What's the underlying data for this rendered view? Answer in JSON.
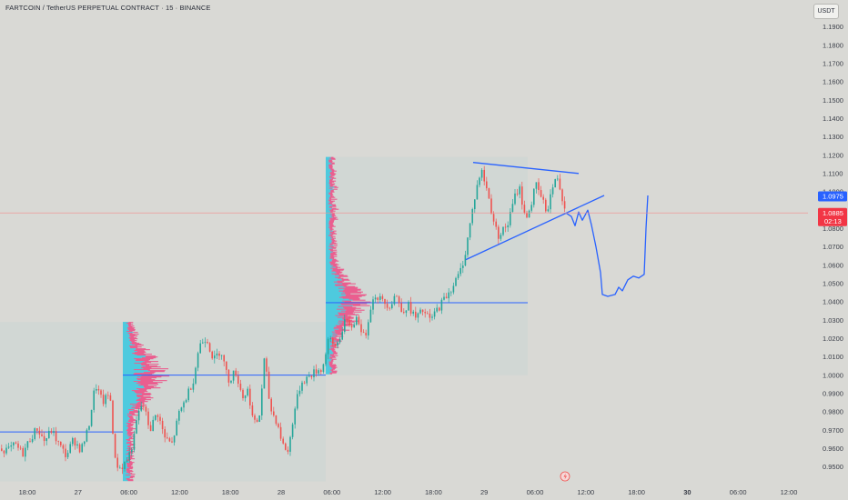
{
  "header": {
    "symbol_title": "FARTCOIN / TetherUS PERPETUAL CONTRACT · 15 · BINANCE",
    "currency_button": "USDT"
  },
  "colors": {
    "bull": "#26a69a",
    "bear": "#ef5350",
    "drawing": "#2962ff",
    "vp_up": "#3dc8df",
    "vp_down": "#ee4f86",
    "price_line": "#f28b8b"
  },
  "chart_data": {
    "type": "candlestick",
    "title": "FARTCOIN / TetherUS PERPETUAL CONTRACT · 15 · BINANCE",
    "y_axis": {
      "ticks": [
        "1.1900",
        "1.1800",
        "1.1700",
        "1.1600",
        "1.1500",
        "1.1400",
        "1.1300",
        "1.1200",
        "1.1100",
        "1.1000",
        "1.0900",
        "1.0800",
        "1.0700",
        "1.0600",
        "1.0500",
        "1.0400",
        "1.0300",
        "1.0200",
        "1.0100",
        "1.0000",
        "0.9900",
        "0.9800",
        "0.9700",
        "0.9600",
        "0.9500"
      ],
      "range": [
        0.942,
        1.202
      ]
    },
    "x_axis": {
      "ticks": [
        {
          "label": "18:00",
          "bold": false
        },
        {
          "label": "27",
          "bold": false
        },
        {
          "label": "06:00",
          "bold": false
        },
        {
          "label": "12:00",
          "bold": false
        },
        {
          "label": "18:00",
          "bold": false
        },
        {
          "label": "28",
          "bold": false
        },
        {
          "label": "06:00",
          "bold": false
        },
        {
          "label": "12:00",
          "bold": false
        },
        {
          "label": "18:00",
          "bold": false
        },
        {
          "label": "29",
          "bold": false
        },
        {
          "label": "06:00",
          "bold": false
        },
        {
          "label": "12:00",
          "bold": false
        },
        {
          "label": "18:00",
          "bold": false
        },
        {
          "label": "30",
          "bold": true
        },
        {
          "label": "06:00",
          "bold": false
        },
        {
          "label": "12:00",
          "bold": false
        }
      ]
    },
    "price_path": [
      [
        0,
        0.96
      ],
      [
        8,
        0.959
      ],
      [
        16,
        0.962
      ],
      [
        24,
        0.957
      ],
      [
        32,
        0.965
      ],
      [
        40,
        0.971
      ],
      [
        48,
        0.964
      ],
      [
        56,
        0.97
      ],
      [
        64,
        0.962
      ],
      [
        72,
        0.956
      ],
      [
        80,
        0.965
      ],
      [
        88,
        0.959
      ],
      [
        96,
        0.97
      ],
      [
        104,
        0.995
      ],
      [
        112,
        0.985
      ],
      [
        120,
        0.99
      ],
      [
        126,
        0.952
      ],
      [
        132,
        0.949
      ],
      [
        140,
        0.955
      ],
      [
        146,
        0.964
      ],
      [
        150,
        0.977
      ],
      [
        156,
        0.985
      ],
      [
        164,
        0.97
      ],
      [
        172,
        0.98
      ],
      [
        180,
        0.966
      ],
      [
        188,
        0.962
      ],
      [
        196,
        0.979
      ],
      [
        204,
        0.988
      ],
      [
        212,
        0.998
      ],
      [
        218,
        1.016
      ],
      [
        226,
        1.021
      ],
      [
        234,
        1.008
      ],
      [
        242,
        1.014
      ],
      [
        250,
        0.997
      ],
      [
        258,
        1.002
      ],
      [
        266,
        0.988
      ],
      [
        272,
        0.992
      ],
      [
        278,
        0.973
      ],
      [
        284,
        0.976
      ],
      [
        290,
        1.01
      ],
      [
        296,
        0.982
      ],
      [
        304,
        0.974
      ],
      [
        310,
        0.962
      ],
      [
        316,
        0.958
      ],
      [
        322,
        0.979
      ],
      [
        330,
        0.996
      ],
      [
        338,
        0.999
      ],
      [
        346,
        1.002
      ],
      [
        354,
        1.004
      ],
      [
        360,
        1.02
      ],
      [
        366,
        1.015
      ],
      [
        372,
        1.019
      ],
      [
        378,
        1.03
      ],
      [
        384,
        1.025
      ],
      [
        392,
        1.032
      ],
      [
        400,
        1.019
      ],
      [
        406,
        1.037
      ],
      [
        412,
        1.044
      ],
      [
        420,
        1.04
      ],
      [
        428,
        1.038
      ],
      [
        434,
        1.045
      ],
      [
        440,
        1.035
      ],
      [
        448,
        1.038
      ],
      [
        456,
        1.031
      ],
      [
        464,
        1.035
      ],
      [
        472,
        1.03
      ],
      [
        480,
        1.036
      ],
      [
        488,
        1.042
      ],
      [
        496,
        1.048
      ],
      [
        504,
        1.055
      ],
      [
        510,
        1.065
      ],
      [
        516,
        1.083
      ],
      [
        522,
        1.1
      ],
      [
        528,
        1.112
      ],
      [
        534,
        1.102
      ],
      [
        540,
        1.088
      ],
      [
        546,
        1.076
      ],
      [
        552,
        1.079
      ],
      [
        558,
        1.083
      ],
      [
        564,
        1.096
      ],
      [
        570,
        1.103
      ],
      [
        576,
        1.086
      ],
      [
        582,
        1.091
      ],
      [
        588,
        1.104
      ],
      [
        594,
        1.097
      ],
      [
        600,
        1.089
      ],
      [
        606,
        1.102
      ],
      [
        612,
        1.108
      ],
      [
        618,
        1.095
      ],
      [
        622,
        1.0885
      ]
    ],
    "volume_profiles": [
      {
        "x0": 0,
        "x1": 135,
        "y_top": 1.029,
        "y_bottom": 0.942,
        "poc": 0.969,
        "profile_width": 0
      },
      {
        "x0": 135,
        "x1": 358,
        "y_top": 1.029,
        "y_bottom": 0.942,
        "poc": 1.0,
        "profile_width": 55
      },
      {
        "x0": 358,
        "x1": 580,
        "y_top": 1.119,
        "y_bottom": 1.0,
        "poc": 1.0395,
        "profile_width": 50
      }
    ],
    "drawings": {
      "triangle_upper": [
        [
          520,
          1.116
        ],
        [
          636,
          1.11
        ]
      ],
      "triangle_lower": [
        [
          512,
          1.063
        ],
        [
          664,
          1.098
        ]
      ],
      "projection_path": [
        [
          622,
          1.0885
        ],
        [
          628,
          1.0865
        ],
        [
          632,
          1.0815
        ],
        [
          636,
          1.089
        ],
        [
          640,
          1.0845
        ],
        [
          646,
          1.09
        ],
        [
          650,
          1.082
        ],
        [
          655,
          1.07
        ],
        [
          660,
          1.056
        ],
        [
          662,
          1.044
        ],
        [
          668,
          1.043
        ],
        [
          676,
          1.044
        ],
        [
          680,
          1.048
        ],
        [
          684,
          1.046
        ],
        [
          690,
          1.052
        ],
        [
          696,
          1.054
        ],
        [
          702,
          1.053
        ],
        [
          708,
          1.055
        ],
        [
          710,
          1.08
        ],
        [
          712,
          1.098
        ]
      ]
    },
    "current_price": {
      "value": "1.0885",
      "countdown": "02:13",
      "price": 1.0885
    },
    "marker_price": {
      "value": "1.0975",
      "price": 1.0975
    },
    "grid": false,
    "legend": "none"
  }
}
